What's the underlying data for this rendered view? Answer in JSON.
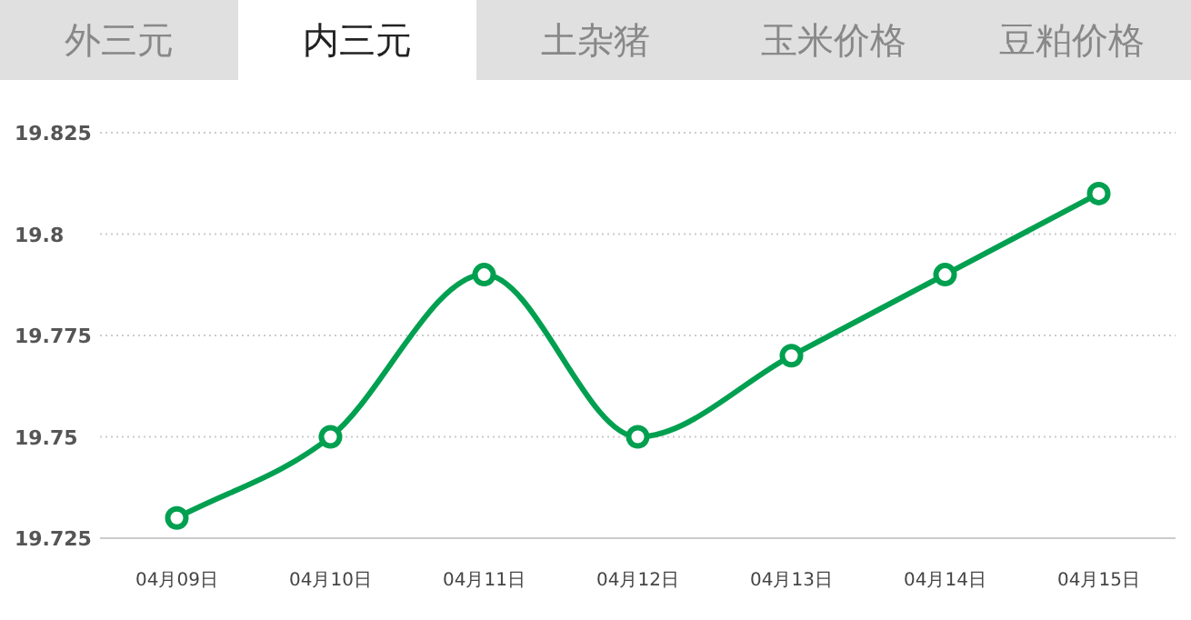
{
  "chart_data": {
    "type": "line",
    "annotations": [
      "外三元",
      "内三元",
      "土杂猪",
      "玉米价格",
      "豆粕价格"
    ],
    "categories": [
      "04月09日",
      "04月10日",
      "04月11日",
      "04月12日",
      "04月13日",
      "04月14日",
      "04月15日"
    ],
    "series": [
      {
        "color": "#00a050",
        "values": [
          19.73,
          19.75,
          19.79,
          19.75,
          19.77,
          19.79,
          19.81
        ]
      }
    ],
    "ylim": [
      19.725,
      19.825
    ],
    "yticks": [
      19.725,
      19.75,
      19.775,
      19.8,
      19.825
    ],
    "grid": "y",
    "marker": "circle",
    "line_style": "solid"
  }
}
